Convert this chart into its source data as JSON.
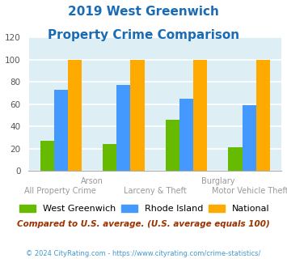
{
  "title_line1": "2019 West Greenwich",
  "title_line2": "Property Crime Comparison",
  "title_color": "#1a6bb5",
  "west_greenwich": [
    27,
    24,
    46,
    21
  ],
  "rhode_island": [
    73,
    77,
    65,
    59
  ],
  "national": [
    100,
    100,
    100,
    100
  ],
  "bar_colors": {
    "west_greenwich": "#66bb00",
    "rhode_island": "#4499ff",
    "national": "#ffaa00"
  },
  "ylim": [
    0,
    120
  ],
  "yticks": [
    0,
    20,
    40,
    60,
    80,
    100,
    120
  ],
  "background_color": "#ddeef4",
  "grid_color": "#ffffff",
  "legend_labels": [
    "West Greenwich",
    "Rhode Island",
    "National"
  ],
  "footnote1": "Compared to U.S. average. (U.S. average equals 100)",
  "footnote2": "© 2024 CityRating.com - https://www.cityrating.com/crime-statistics/",
  "footnote1_color": "#993300",
  "footnote2_color": "#4499cc",
  "label_row1": [
    "",
    "Arson",
    "",
    "Burglary"
  ],
  "label_row2": [
    "All Property Crime",
    "Larceny & Theft",
    "",
    "Motor Vehicle Theft"
  ],
  "label_color": "#999999",
  "label_fontsize": 7.0
}
